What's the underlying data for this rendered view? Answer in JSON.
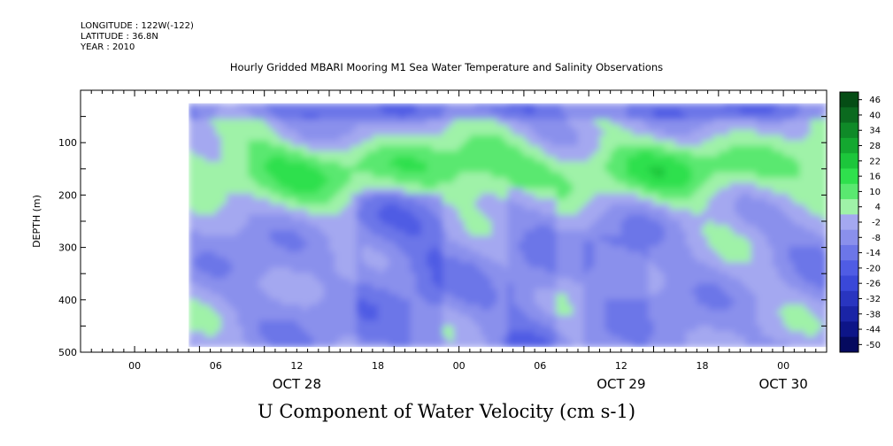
{
  "chart_data": {
    "type": "heatmap",
    "header_lines": [
      "LONGITUDE : 122W(-122)",
      "LATITUDE : 36.8N",
      "YEAR : 2010"
    ],
    "title": "Hourly Gridded MBARI Mooring M1 Sea Water Temperature and Salinity Observations",
    "footer_title": "U Component of Water Velocity (cm s-1)",
    "xlabel": "",
    "ylabel": "DEPTH (m)",
    "y_range": [
      500,
      0
    ],
    "y_ticks": [
      100,
      200,
      300,
      400,
      500
    ],
    "y_tick_labels": [
      "100",
      "200",
      "300",
      "400",
      "500"
    ],
    "x_range_hours": [
      0,
      69
    ],
    "x_tick_labels": [
      {
        "hour": 5,
        "label": "00"
      },
      {
        "hour": 12.5,
        "label": "06"
      },
      {
        "hour": 20,
        "label": "12"
      },
      {
        "hour": 27.5,
        "label": "18"
      },
      {
        "hour": 35,
        "label": "00"
      },
      {
        "hour": 42.5,
        "label": "06"
      },
      {
        "hour": 50,
        "label": "12"
      },
      {
        "hour": 57.5,
        "label": "18"
      },
      {
        "hour": 65,
        "label": "00"
      }
    ],
    "date_labels": [
      {
        "hour": 20,
        "label": "OCT 28"
      },
      {
        "hour": 50,
        "label": "OCT 29"
      },
      {
        "hour": 65,
        "label": "OCT 30"
      }
    ],
    "data_start_hour": 10,
    "data_depth_range": [
      25,
      490
    ],
    "colorbar_levels": [
      46,
      40,
      34,
      28,
      22,
      16,
      10,
      4,
      -2,
      -8,
      -14,
      -20,
      -26,
      -32,
      -38,
      -44,
      -50
    ],
    "colorbar_tick_labels": [
      "46",
      "40",
      "34",
      "28",
      "22",
      "16",
      "10",
      "4",
      "-2",
      "-8",
      "-14",
      "-20",
      "-26",
      "-32",
      "-38",
      "-44",
      "-50"
    ],
    "colorbar_colors": [
      "#054d15",
      "#0b6a1f",
      "#0f8a28",
      "#14a830",
      "#1cc63b",
      "#2fe04d",
      "#5ae870",
      "#9ff2a8",
      "#a4a8f0",
      "#8a90ec",
      "#6c76e8",
      "#4f5ce4",
      "#3a48d8",
      "#2935c0",
      "#1a24a6",
      "#0d1588",
      "#050a5f"
    ],
    "grid": false
  }
}
